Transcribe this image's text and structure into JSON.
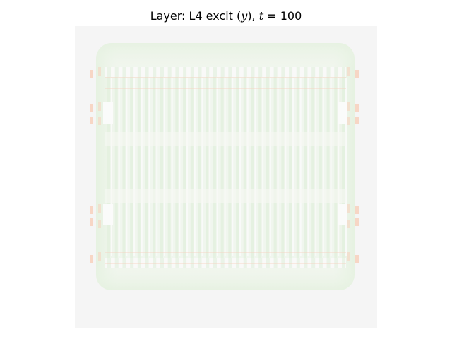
{
  "figure": {
    "title_prefix": "Layer: L4 excit (",
    "title_var": "y",
    "title_mid": "), ",
    "title_t": "t",
    "title_eq": " = 100"
  },
  "chart_data": {
    "type": "heatmap",
    "title": "Layer: L4 excit (y), t = 100",
    "xlabel": "",
    "ylabel": "",
    "axes_visible": false,
    "grid": false,
    "colormap": "diverging green-white-orange",
    "colors": {
      "background": "#f5f5f5",
      "low": "#e6f2e2",
      "mid": "#f3f6f1",
      "high": "#f7d3c0"
    },
    "field_description_levels": {
      "background": 0.0,
      "interior": -0.12,
      "border_band": -0.2,
      "column_stripes": 0.05,
      "edge_markers": 0.35
    }
  }
}
